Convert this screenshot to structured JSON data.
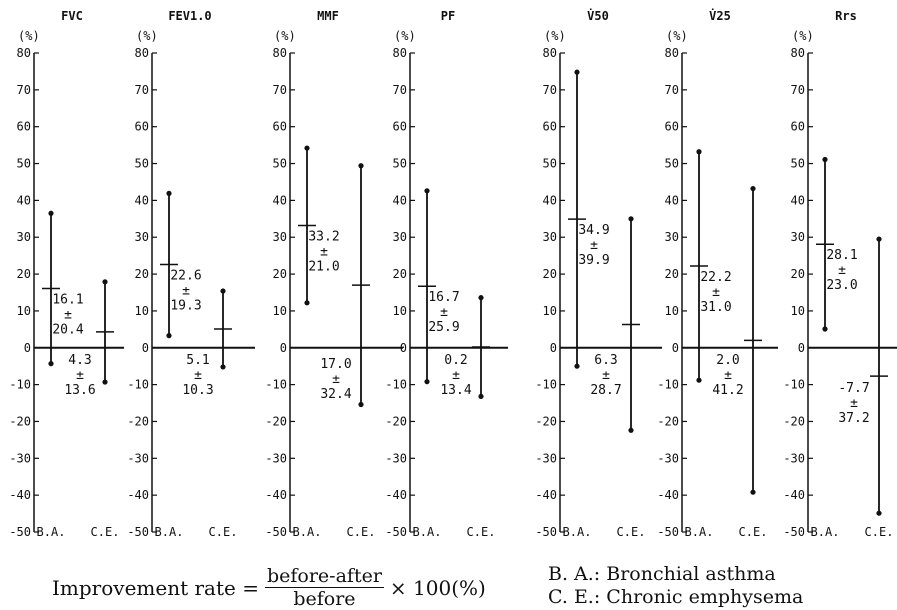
{
  "chart_data": {
    "type": "range",
    "y_unit_label": "(%)",
    "ylim": [
      -50,
      80
    ],
    "yticks": [
      80,
      70,
      60,
      50,
      40,
      30,
      20,
      10,
      0,
      -10,
      -20,
      -30,
      -40,
      -50
    ],
    "categories": [
      "B.A.",
      "C.E."
    ],
    "panels": [
      {
        "title": "FVC",
        "groups": [
          {
            "category": "B.A.",
            "mean": 16.1,
            "sd": 20.4,
            "mean_label": "16.1",
            "pm": "±",
            "sd_label": "20.4"
          },
          {
            "category": "C.E.",
            "mean": 4.3,
            "sd": 13.6,
            "mean_label": "4.3",
            "pm": "±",
            "sd_label": "13.6"
          }
        ]
      },
      {
        "title": "FEV1.0",
        "groups": [
          {
            "category": "B.A.",
            "mean": 22.6,
            "sd": 19.3,
            "mean_label": "22.6",
            "pm": "±",
            "sd_label": "19.3"
          },
          {
            "category": "C.E.",
            "mean": 5.1,
            "sd": 10.3,
            "mean_label": "5.1",
            "pm": "±",
            "sd_label": "10.3"
          }
        ]
      },
      {
        "title": "MMF",
        "groups": [
          {
            "category": "B.A.",
            "mean": 33.2,
            "sd": 21.0,
            "mean_label": "33.2",
            "pm": "±",
            "sd_label": "21.0"
          },
          {
            "category": "C.E.",
            "mean": 17.0,
            "sd": 32.4,
            "mean_label": "17.0",
            "pm": "±",
            "sd_label": "32.4"
          }
        ]
      },
      {
        "title": "PF",
        "groups": [
          {
            "category": "B.A.",
            "mean": 16.7,
            "sd": 25.9,
            "mean_label": "16.7",
            "pm": "±",
            "sd_label": "25.9"
          },
          {
            "category": "C.E.",
            "mean": 0.2,
            "sd": 13.4,
            "mean_label": "0.2",
            "pm": "±",
            "sd_label": "13.4"
          }
        ]
      },
      {
        "title": "V̇50",
        "groups": [
          {
            "category": "B.A.",
            "mean": 34.9,
            "sd": 39.9,
            "mean_label": "34.9",
            "pm": "±",
            "sd_label": "39.9"
          },
          {
            "category": "C.E.",
            "mean": 6.3,
            "sd": 28.7,
            "mean_label": "6.3",
            "pm": "±",
            "sd_label": "28.7"
          }
        ]
      },
      {
        "title": "V̇25",
        "groups": [
          {
            "category": "B.A.",
            "mean": 22.2,
            "sd": 31.0,
            "mean_label": "22.2",
            "pm": "±",
            "sd_label": "31.0"
          },
          {
            "category": "C.E.",
            "mean": 2.0,
            "sd": 41.2,
            "mean_label": "2.0",
            "pm": "±",
            "sd_label": "41.2"
          }
        ]
      },
      {
        "title": "Rrs",
        "groups": [
          {
            "category": "B.A.",
            "mean": 28.1,
            "sd": 23.0,
            "mean_label": "28.1",
            "pm": "±",
            "sd_label": "23.0"
          },
          {
            "category": "C.E.",
            "mean": -7.7,
            "sd": 37.2,
            "mean_label": "-7.7",
            "pm": "±",
            "sd_label": "37.2"
          }
        ]
      }
    ]
  },
  "caption": {
    "formula_prefix": "Improvement rate =",
    "numerator": "before-after",
    "denominator": "before",
    "formula_suffix": "× 100(%)",
    "legend": [
      {
        "abbr": "B. A.:",
        "text": "Bronchial asthma"
      },
      {
        "abbr": "C. E.:",
        "text": "Chronic emphysema"
      }
    ]
  }
}
